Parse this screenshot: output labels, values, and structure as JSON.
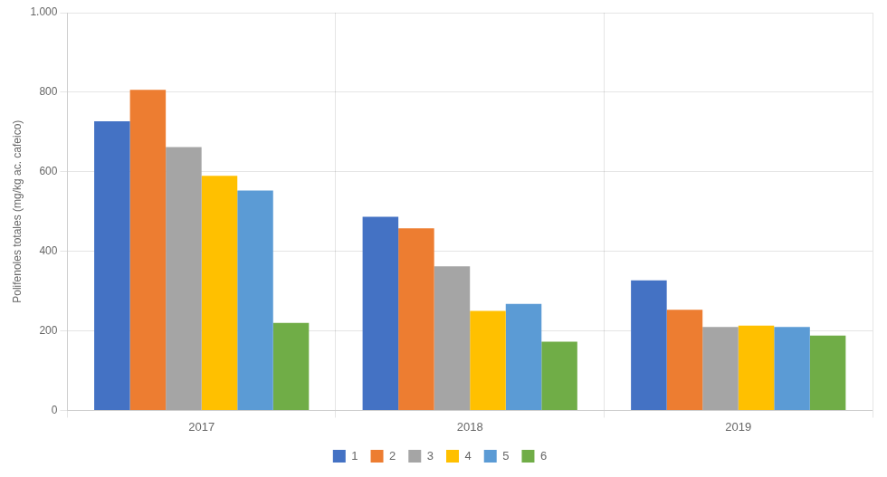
{
  "chart_data": {
    "type": "bar",
    "categories": [
      "2017",
      "2018",
      "2019"
    ],
    "series": [
      {
        "name": "1",
        "color": "#4472C4",
        "values": [
          727,
          487,
          327
        ]
      },
      {
        "name": "2",
        "color": "#ED7D31",
        "values": [
          806,
          458,
          253
        ]
      },
      {
        "name": "3",
        "color": "#A5A5A5",
        "values": [
          662,
          362,
          210
        ]
      },
      {
        "name": "4",
        "color": "#FFC000",
        "values": [
          590,
          250,
          213
        ]
      },
      {
        "name": "5",
        "color": "#5B9BD5",
        "values": [
          553,
          268,
          210
        ]
      },
      {
        "name": "6",
        "color": "#70AD47",
        "values": [
          220,
          173,
          188
        ]
      }
    ],
    "ylabel": "Polifenoles totales (mg/kg ac. cafeico)",
    "ylim": [
      0,
      1000
    ],
    "yticks": [
      0,
      200,
      400,
      600,
      800,
      {
        "value": 1000,
        "label": "1.000"
      }
    ],
    "grid": true,
    "legend": "bottom"
  }
}
